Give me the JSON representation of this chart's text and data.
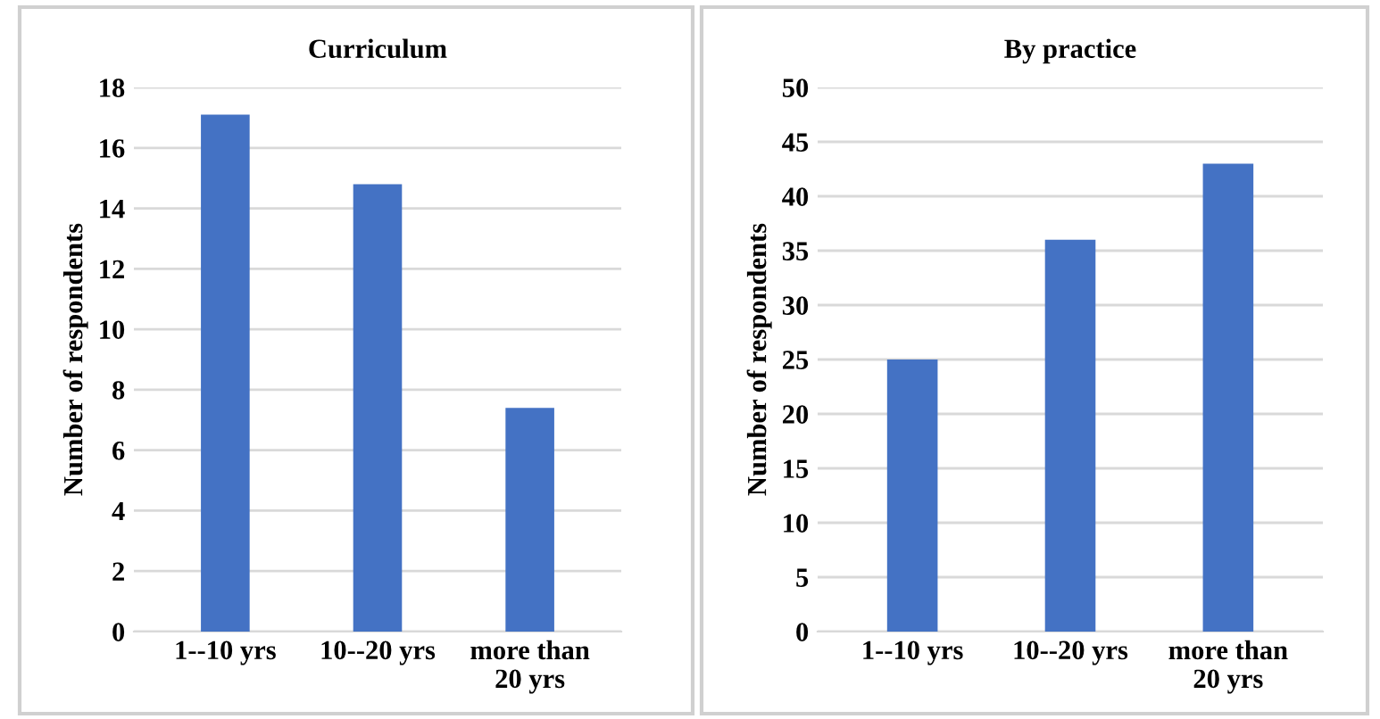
{
  "chart_data": [
    {
      "type": "bar",
      "title": "Curriculum",
      "ylabel": "Number of respondents",
      "categories": [
        "1--10 yrs",
        "10--20 yrs",
        "more than\n20 yrs"
      ],
      "values": [
        17.1,
        14.8,
        7.4
      ],
      "color": "#4472c4",
      "ylim": [
        0,
        18
      ],
      "yticks": [
        0,
        2,
        4,
        6,
        8,
        10,
        12,
        14,
        16,
        18
      ],
      "grid": "y"
    },
    {
      "type": "bar",
      "title": "By practice",
      "ylabel": "Number of respondents",
      "categories": [
        "1--10 yrs",
        "10--20 yrs",
        "more than\n20 yrs"
      ],
      "values": [
        25,
        36,
        43
      ],
      "color": "#4472c4",
      "ylim": [
        0,
        50
      ],
      "yticks": [
        0,
        5,
        10,
        15,
        20,
        25,
        30,
        35,
        40,
        45,
        50
      ],
      "grid": "y"
    }
  ]
}
